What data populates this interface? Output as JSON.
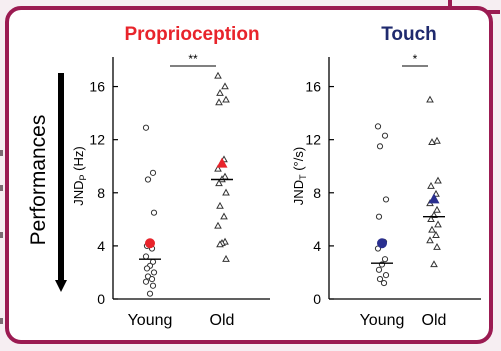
{
  "colors": {
    "frame": "#9b1b52",
    "proprioception_title": "#e8242b",
    "touch_title": "#1f2a6e",
    "young_mean_proprioception": "#e8242b",
    "old_mean_proprioception": "#e8242b",
    "young_mean_touch": "#2a2f8f",
    "old_mean_touch": "#2a2f8f"
  },
  "side_label": "Performances",
  "chart_data": [
    {
      "type": "scatter",
      "title": "Proprioception",
      "ylabel": "JNDₚ (Hz)",
      "ylabel_main": "JND",
      "ylabel_sub": "P",
      "ylabel_unit": "(Hz)",
      "categories": [
        "Young",
        "Old"
      ],
      "yticks": [
        "0",
        "4",
        "8",
        "12",
        "16"
      ],
      "ylim": [
        0,
        18
      ],
      "significance": "**",
      "series": [
        {
          "category": "Young",
          "marker": "circle",
          "values": [
            12.9,
            9.5,
            9.0,
            6.5,
            4.0,
            3.8,
            3.2,
            2.8,
            2.5,
            2.3,
            2.0,
            1.7,
            1.5,
            1.3,
            1.0,
            0.4
          ],
          "mean": 3.0,
          "group_mean_marker": 4.2
        },
        {
          "category": "Old",
          "marker": "triangle",
          "values": [
            16.8,
            16.0,
            15.5,
            15.0,
            14.8,
            10.5,
            9.8,
            9.2,
            9.0,
            8.7,
            8.0,
            7.0,
            6.2,
            5.5,
            4.3,
            4.2,
            4.1,
            3.0
          ],
          "mean": 9.0,
          "group_mean_marker": 10.2
        }
      ]
    },
    {
      "type": "scatter",
      "title": "Touch",
      "ylabel": "JNDₜ (°/s)",
      "ylabel_main": "JND",
      "ylabel_sub": "T",
      "ylabel_unit": "(°/s)",
      "categories": [
        "Young",
        "Old"
      ],
      "yticks": [
        "0",
        "4",
        "8",
        "12",
        "16"
      ],
      "ylim": [
        0,
        18
      ],
      "significance": "*",
      "series": [
        {
          "category": "Young",
          "marker": "circle",
          "values": [
            13.0,
            12.3,
            11.5,
            7.5,
            6.2,
            4.3,
            3.8,
            3.0,
            2.6,
            2.2,
            1.8,
            1.5,
            1.2
          ],
          "mean": 2.7,
          "group_mean_marker": 4.2
        },
        {
          "category": "Old",
          "marker": "triangle",
          "values": [
            15.0,
            11.9,
            11.8,
            8.9,
            8.5,
            7.9,
            7.2,
            6.7,
            6.3,
            6.0,
            5.6,
            5.2,
            4.8,
            4.4,
            3.9,
            2.6
          ],
          "mean": 6.2,
          "group_mean_marker": 7.5
        }
      ]
    }
  ]
}
